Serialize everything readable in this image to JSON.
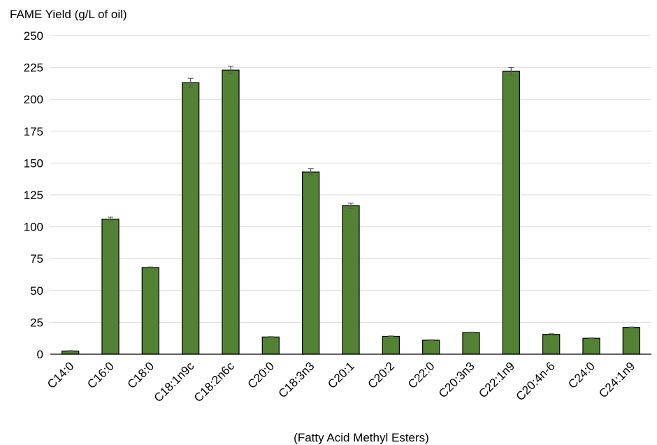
{
  "chart_data": {
    "type": "bar",
    "ylabel": "FAME Yield (g/L of oil)",
    "xlabel": "(Fatty Acid Methyl Esters)",
    "categories": [
      "C14:0",
      "C16:0",
      "C18:0",
      "C18:1n9c",
      "C18:2n6c",
      "C20:0",
      "C18:3n3",
      "C20:1",
      "C20:2",
      "C22:0",
      "C20:3n3",
      "C22:1n9",
      "C20:4n-6",
      "C24:0",
      "C24:1n9"
    ],
    "values": [
      2.5,
      106,
      68,
      213,
      223,
      13.5,
      143,
      116.5,
      14,
      11,
      17,
      222,
      15.5,
      12.5,
      21
    ],
    "errors": [
      0.3,
      1.5,
      0.4,
      3.5,
      3,
      0.3,
      2.5,
      2,
      0.3,
      0.3,
      0.3,
      3,
      0.5,
      0.3,
      0.3
    ],
    "ylim": [
      0,
      250
    ],
    "yticks": [
      0,
      25,
      50,
      75,
      100,
      125,
      150,
      175,
      200,
      225,
      250
    ],
    "grid": true,
    "colors": {
      "bar": "#548235",
      "bar_edge": "#000000",
      "grid": "#d9d9d9",
      "error": "#595959"
    }
  }
}
